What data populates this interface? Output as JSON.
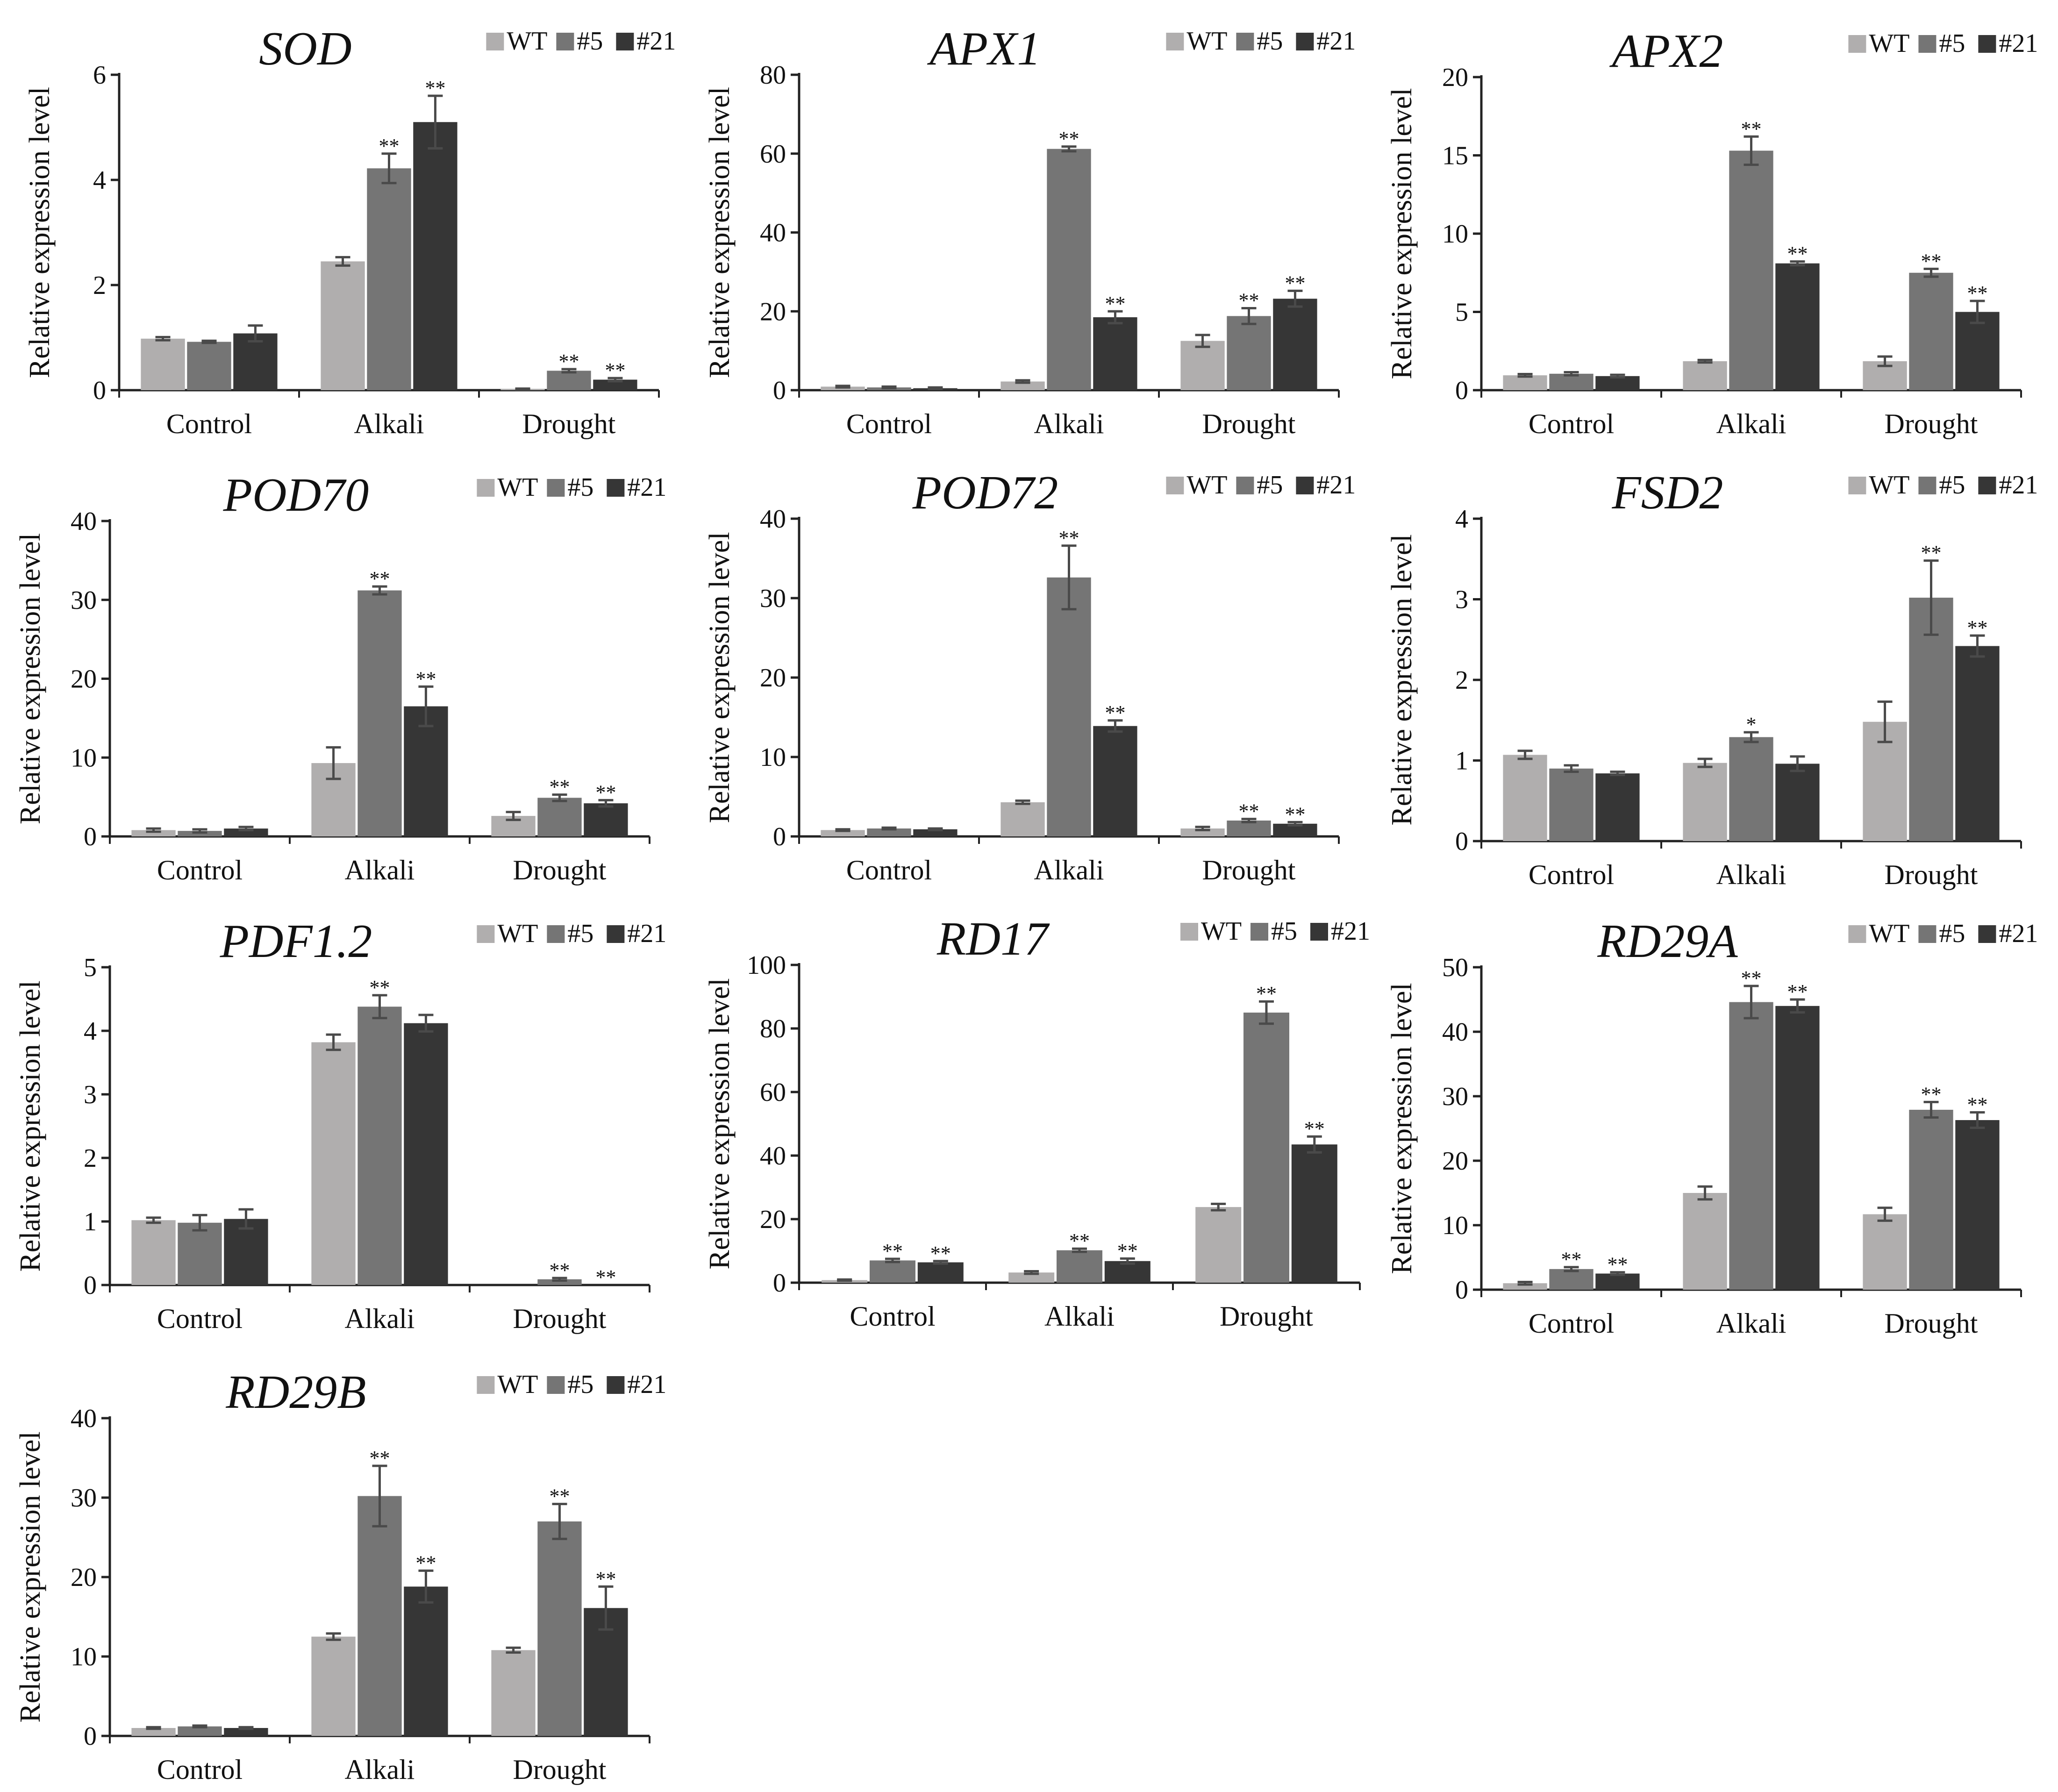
{
  "colors": {
    "WT": "#b0aeae",
    "#5": "#757575",
    "#21": "#363636",
    "axis": "#222222",
    "errorbar": "#4a4a4a"
  },
  "chart_data": [
    {
      "type": "bar",
      "title": "SOD",
      "ylabel": "Relative expression level",
      "ylim": [
        0,
        6
      ],
      "yticks": [
        0,
        2,
        4,
        6
      ],
      "legend": "top-right",
      "categories": [
        "Control",
        "Alkali",
        "Drought"
      ],
      "series": [
        {
          "name": "WT",
          "values": [
            0.98,
            2.45,
            0.02
          ],
          "errors": [
            0.03,
            0.08,
            0.01
          ],
          "sig": [
            "",
            "",
            ""
          ]
        },
        {
          "name": "#5",
          "values": [
            0.92,
            4.22,
            0.37
          ],
          "errors": [
            0.02,
            0.28,
            0.03
          ],
          "sig": [
            "",
            "**",
            "**"
          ]
        },
        {
          "name": "#21",
          "values": [
            1.08,
            5.1,
            0.2
          ],
          "errors": [
            0.15,
            0.5,
            0.03
          ],
          "sig": [
            "",
            "**",
            "**"
          ]
        }
      ]
    },
    {
      "type": "bar",
      "title": "APX1",
      "ylabel": "Relative expression level",
      "ylim": [
        0,
        80
      ],
      "yticks": [
        0,
        20,
        40,
        60,
        80
      ],
      "legend": "top-right",
      "categories": [
        "Control",
        "Alkali",
        "Drought"
      ],
      "series": [
        {
          "name": "WT",
          "values": [
            0.9,
            2.2,
            12.5
          ],
          "errors": [
            0.2,
            0.3,
            1.5
          ],
          "sig": [
            "",
            "",
            ""
          ]
        },
        {
          "name": "#5",
          "values": [
            0.7,
            61.2,
            18.8
          ],
          "errors": [
            0.2,
            0.6,
            2.0
          ],
          "sig": [
            "",
            "**",
            "**"
          ]
        },
        {
          "name": "#21",
          "values": [
            0.5,
            18.5,
            23.2
          ],
          "errors": [
            0.2,
            1.5,
            2.0
          ],
          "sig": [
            "",
            "**",
            "**"
          ]
        }
      ]
    },
    {
      "type": "bar",
      "title": "APX2",
      "ylabel": "Relative expression level",
      "ylim": [
        0,
        20
      ],
      "yticks": [
        0,
        5,
        10,
        15,
        20
      ],
      "legend": "top-right",
      "categories": [
        "Control",
        "Alkali",
        "Drought"
      ],
      "series": [
        {
          "name": "WT",
          "values": [
            0.95,
            1.85,
            1.85
          ],
          "errors": [
            0.08,
            0.08,
            0.3
          ],
          "sig": [
            "",
            "",
            ""
          ]
        },
        {
          "name": "#5",
          "values": [
            1.05,
            15.3,
            7.5
          ],
          "errors": [
            0.1,
            0.9,
            0.25
          ],
          "sig": [
            "",
            "**",
            "**"
          ]
        },
        {
          "name": "#21",
          "values": [
            0.9,
            8.1,
            5.0
          ],
          "errors": [
            0.08,
            0.12,
            0.7
          ],
          "sig": [
            "",
            "**",
            "**"
          ]
        }
      ]
    },
    {
      "type": "bar",
      "title": "POD70",
      "ylabel": "Relative expression level",
      "ylim": [
        0,
        40
      ],
      "yticks": [
        0,
        10,
        20,
        30,
        40
      ],
      "legend": "top-right",
      "categories": [
        "Control",
        "Alkali",
        "Drought"
      ],
      "series": [
        {
          "name": "WT",
          "values": [
            0.8,
            9.3,
            2.6
          ],
          "errors": [
            0.2,
            2.0,
            0.5
          ],
          "sig": [
            "",
            "",
            ""
          ]
        },
        {
          "name": "#5",
          "values": [
            0.7,
            31.2,
            4.9
          ],
          "errors": [
            0.2,
            0.5,
            0.4
          ],
          "sig": [
            "",
            "**",
            "**"
          ]
        },
        {
          "name": "#21",
          "values": [
            1.0,
            16.5,
            4.2
          ],
          "errors": [
            0.2,
            2.5,
            0.4
          ],
          "sig": [
            "",
            "**",
            "**"
          ]
        }
      ]
    },
    {
      "type": "bar",
      "title": "POD72",
      "ylabel": "Relative expression level",
      "ylim": [
        0,
        40
      ],
      "yticks": [
        0,
        10,
        20,
        30,
        40
      ],
      "legend": "top-right",
      "categories": [
        "Control",
        "Alkali",
        "Drought"
      ],
      "series": [
        {
          "name": "WT",
          "values": [
            0.8,
            4.3,
            1.0
          ],
          "errors": [
            0.1,
            0.2,
            0.2
          ],
          "sig": [
            "",
            "",
            ""
          ]
        },
        {
          "name": "#5",
          "values": [
            1.0,
            32.6,
            2.0
          ],
          "errors": [
            0.1,
            4.0,
            0.2
          ],
          "sig": [
            "",
            "**",
            "**"
          ]
        },
        {
          "name": "#21",
          "values": [
            0.9,
            13.9,
            1.6
          ],
          "errors": [
            0.1,
            0.7,
            0.2
          ],
          "sig": [
            "",
            "**",
            "**"
          ]
        }
      ]
    },
    {
      "type": "bar",
      "title": "FSD2",
      "ylabel": "Relative expression level",
      "ylim": [
        0,
        4
      ],
      "yticks": [
        0,
        1,
        2,
        3,
        4
      ],
      "legend": "top-right",
      "categories": [
        "Control",
        "Alkali",
        "Drought"
      ],
      "series": [
        {
          "name": "WT",
          "values": [
            1.07,
            0.97,
            1.48
          ],
          "errors": [
            0.05,
            0.05,
            0.25
          ],
          "sig": [
            "",
            "",
            ""
          ]
        },
        {
          "name": "#5",
          "values": [
            0.9,
            1.29,
            3.02
          ],
          "errors": [
            0.04,
            0.06,
            0.46
          ],
          "sig": [
            "",
            "*",
            "**"
          ]
        },
        {
          "name": "#21",
          "values": [
            0.84,
            0.96,
            2.42
          ],
          "errors": [
            0.02,
            0.09,
            0.13
          ],
          "sig": [
            "",
            "",
            "**"
          ]
        }
      ]
    },
    {
      "type": "bar",
      "title": "PDF1.2",
      "ylabel": "Relative expression level",
      "ylim": [
        0,
        5
      ],
      "yticks": [
        0,
        1,
        2,
        3,
        4,
        5
      ],
      "legend": "top-right",
      "categories": [
        "Control",
        "Alkali",
        "Drought"
      ],
      "series": [
        {
          "name": "WT",
          "values": [
            1.02,
            3.82,
            0.0
          ],
          "errors": [
            0.04,
            0.12,
            0.0
          ],
          "sig": [
            "",
            "",
            ""
          ]
        },
        {
          "name": "#5",
          "values": [
            0.98,
            4.38,
            0.09
          ],
          "errors": [
            0.12,
            0.18,
            0.02
          ],
          "sig": [
            "",
            "**",
            "**"
          ]
        },
        {
          "name": "#21",
          "values": [
            1.04,
            4.12,
            0.0
          ],
          "errors": [
            0.15,
            0.13,
            0.0
          ],
          "sig": [
            "",
            "",
            "**"
          ]
        }
      ]
    },
    {
      "type": "bar",
      "title": "RD17",
      "ylabel": "Relative expression level",
      "ylim": [
        0,
        100
      ],
      "yticks": [
        0,
        20,
        40,
        60,
        80,
        100
      ],
      "legend": "top-right",
      "categories": [
        "Control",
        "Alkali",
        "Drought"
      ],
      "series": [
        {
          "name": "WT",
          "values": [
            0.8,
            3.2,
            23.8
          ],
          "errors": [
            0.2,
            0.4,
            1.0
          ],
          "sig": [
            "",
            "",
            ""
          ]
        },
        {
          "name": "#5",
          "values": [
            7.0,
            10.2,
            85.0
          ],
          "errors": [
            0.5,
            0.5,
            3.5
          ],
          "sig": [
            "**",
            "**",
            "**"
          ]
        },
        {
          "name": "#21",
          "values": [
            6.4,
            6.8,
            43.5
          ],
          "errors": [
            0.4,
            0.8,
            2.5
          ],
          "sig": [
            "**",
            "**",
            "**"
          ]
        }
      ]
    },
    {
      "type": "bar",
      "title": "RD29A",
      "ylabel": "Relative expression level",
      "ylim": [
        0,
        50
      ],
      "yticks": [
        0,
        10,
        20,
        30,
        40,
        50
      ],
      "legend": "top-right",
      "categories": [
        "Control",
        "Alkali",
        "Drought"
      ],
      "series": [
        {
          "name": "WT",
          "values": [
            1.0,
            15.0,
            11.7
          ],
          "errors": [
            0.2,
            1.0,
            1.0
          ],
          "sig": [
            "",
            "",
            ""
          ]
        },
        {
          "name": "#5",
          "values": [
            3.2,
            44.6,
            27.9
          ],
          "errors": [
            0.3,
            2.5,
            1.2
          ],
          "sig": [
            "**",
            "**",
            "**"
          ]
        },
        {
          "name": "#21",
          "values": [
            2.5,
            44.0,
            26.3
          ],
          "errors": [
            0.2,
            1.0,
            1.2
          ],
          "sig": [
            "**",
            "**",
            "**"
          ]
        }
      ]
    },
    {
      "type": "bar",
      "title": "RD29B",
      "ylabel": "Relative expression level",
      "ylim": [
        0,
        40
      ],
      "yticks": [
        0,
        10,
        20,
        30,
        40
      ],
      "legend": "top-right",
      "categories": [
        "Control",
        "Alkali",
        "Drought"
      ],
      "series": [
        {
          "name": "WT",
          "values": [
            1.0,
            12.5,
            10.8
          ],
          "errors": [
            0.1,
            0.4,
            0.3
          ],
          "sig": [
            "",
            "",
            ""
          ]
        },
        {
          "name": "#5",
          "values": [
            1.2,
            30.2,
            27.0
          ],
          "errors": [
            0.1,
            3.8,
            2.2
          ],
          "sig": [
            "",
            "**",
            "**"
          ]
        },
        {
          "name": "#21",
          "values": [
            1.0,
            18.8,
            16.1
          ],
          "errors": [
            0.1,
            2.0,
            2.7
          ],
          "sig": [
            "",
            "**",
            "**"
          ]
        }
      ]
    }
  ]
}
